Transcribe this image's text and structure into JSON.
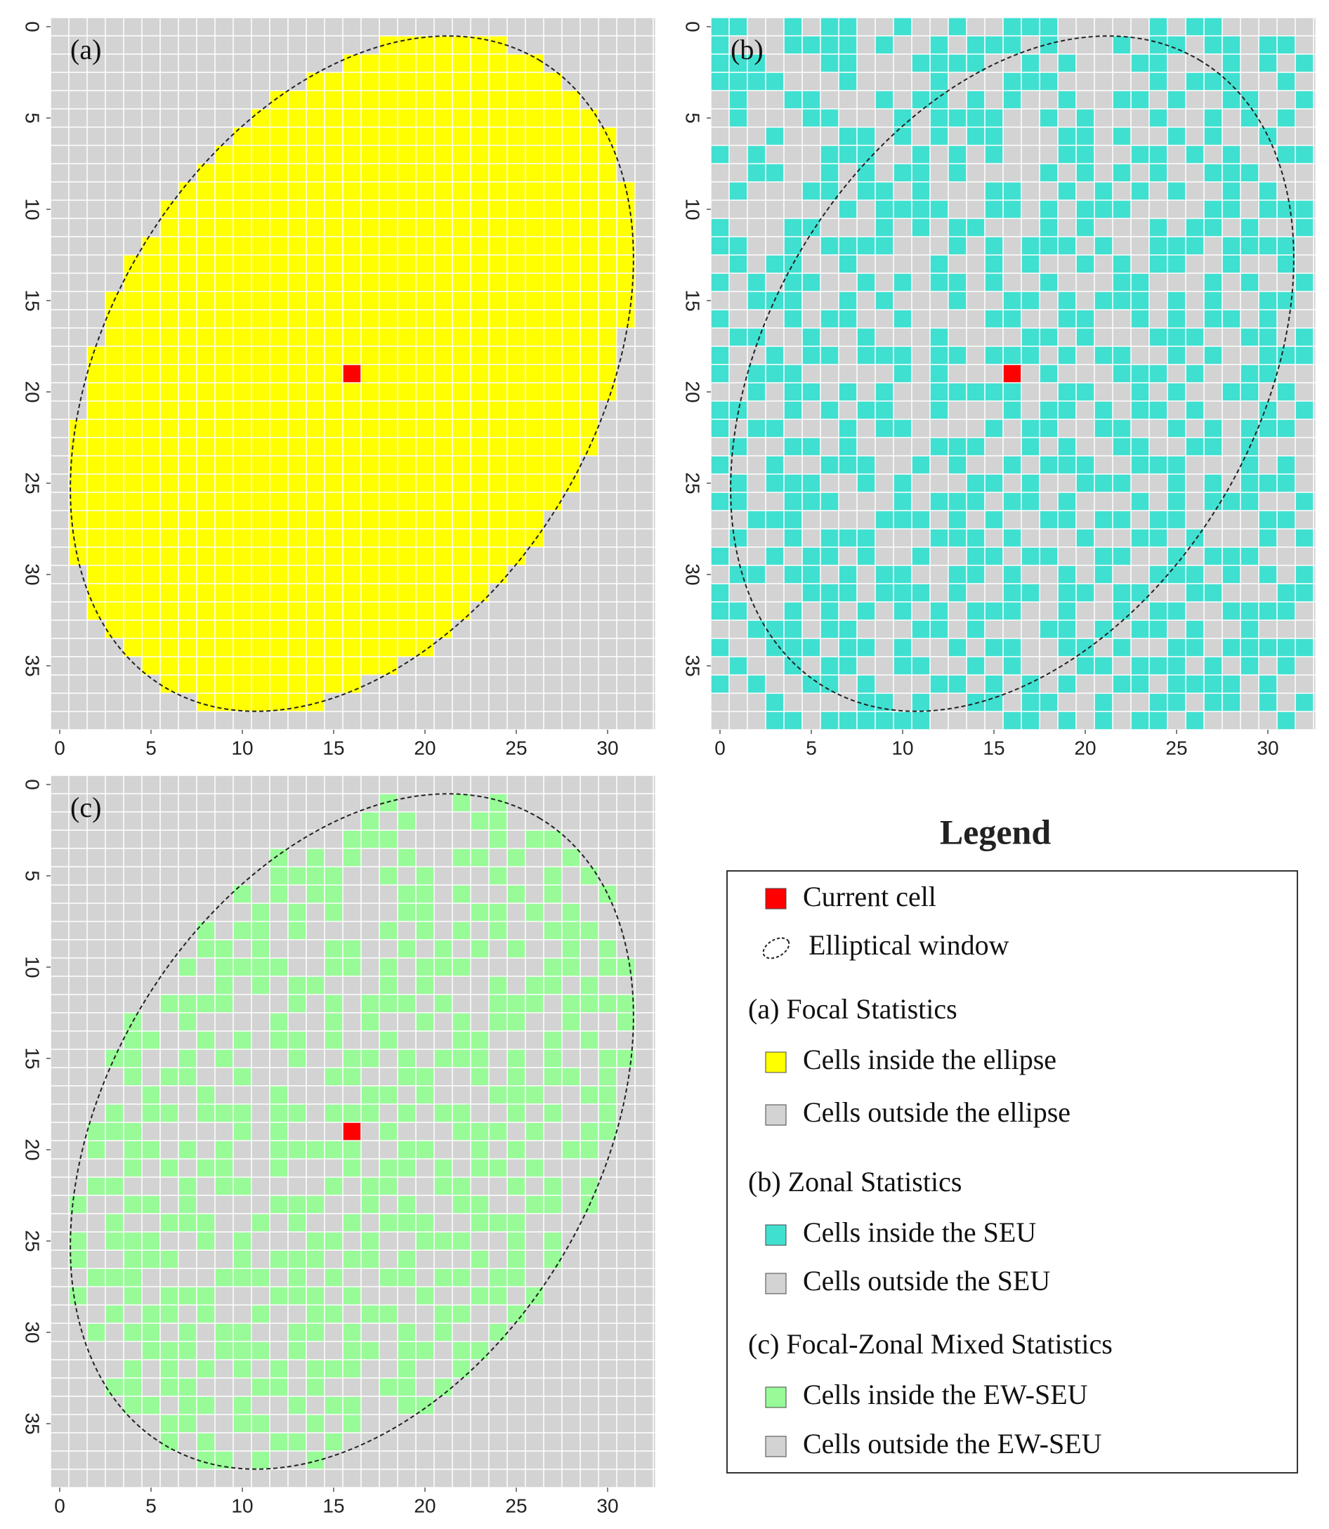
{
  "chart_data": [
    {
      "type": "raster",
      "label": "(a)",
      "xlim": [
        -0.5,
        32.6
      ],
      "ylim": [
        -0.5,
        38.5
      ],
      "xticks": [
        0,
        5,
        10,
        15,
        20,
        25,
        30
      ],
      "yticks": [
        0,
        5,
        10,
        15,
        20,
        25,
        30,
        35
      ],
      "background": "#d3d3d3",
      "fill": "#ffff00",
      "clip": true,
      "ellipse": {
        "center": [
          16,
          19
        ],
        "radii": [
          20,
          13.4
        ],
        "angle": -59.1
      },
      "current": [
        16,
        19
      ],
      "current_color": "#ff0000"
    },
    {
      "type": "raster",
      "label": "(b)",
      "xlim": [
        -0.5,
        32.6
      ],
      "ylim": [
        -0.5,
        38.5
      ],
      "xticks": [
        0,
        5,
        10,
        15,
        20,
        25,
        30
      ],
      "yticks": [
        0,
        5,
        10,
        15,
        20,
        25,
        30,
        35
      ],
      "background": "#d3d3d3",
      "fill": "#40e0d0",
      "clip": false,
      "ellipse": {
        "center": [
          16,
          19
        ],
        "radii": [
          20,
          13.4
        ],
        "angle": -59.1
      },
      "current": [
        16,
        19
      ],
      "current_color": "#ff0000",
      "rows": [
        "110010110010010011100000101100000",
        "100011110100101110100010110110110",
        "111000110001111001010001100010101",
        "111100010000100011100000101110010",
        "010011000101101010010011010011001",
        "010001100010111100101000100101010",
        "000100011010101100011010010100100",
        "101000111001010100011001101010011",
        "001100101011010000101010100111000",
        "010001101101000110010101010010100",
        "000000010111100110101110000110111",
        "100011000101011000101000101101001",
        "110010111100010101110100111011110",
        "010110010000100101001010110010010",
        "101011001010110100100011000101001",
        "001110010100010011010111010100110",
        "100010110010000110011001010110100",
        "011001001000100001101000111001101",
        "100101101110110111010110010100111",
        "101110000010100010100011101001100",
        "001011010100111110011001010011010",
        "110010101100100010110101101000101",
        "101100010110000101100110010101110",
        "010011010000111001010011001101000",
        "100100111001010010111001110001010",
        "010111001010001101001110010101110",
        "110011100010111011010001010111001",
        "001110000111010100110110110000110",
        "010010111000111010001001101000101",
        "100101101001001101100110010111000",
        "011011010110011010010100111010101",
        "100001110111010011011011001100011",
        "110010101010101110010010110011110",
        "001110110001101000110101101001000",
        "100111011010010110011010011011111",
        "010010110011001010001101110101010",
        "101001101000110101010011011110100",
        "000100001101001101100100110110101",
        "000110111111000011010101101000010"
      ],
      "rows_note": null
    },
    {
      "type": "raster",
      "label": "(c)",
      "xlim": [
        -0.5,
        32.6
      ],
      "ylim": [
        -0.5,
        38.5
      ],
      "xticks": [
        0,
        5,
        10,
        15,
        20,
        25,
        30
      ],
      "yticks": [
        0,
        5,
        10,
        15,
        20,
        25,
        30,
        35
      ],
      "background": "#d3d3d3",
      "fill": "#98fb98",
      "clip": true,
      "ellipse": {
        "center": [
          16,
          19
        ],
        "radii": [
          20,
          13.4
        ],
        "angle": -59.1
      },
      "current": [
        16,
        19
      ],
      "current_color": "#ff0000",
      "rows": [
        "110010110010010011100000101100000",
        "100011110100101110100010110110110",
        "111000110001111001010001100010101",
        "111100010000100011100000101110010",
        "010011000101101010010011010011001",
        "010001100010111100101000100101010",
        "000100011010101100011010010100100",
        "101000111001010100011001101010011",
        "001100101011010000101010100111000",
        "010001101101000110010101010010100",
        "000000010111100110101110000110111",
        "100011000101011000101000101101001",
        "110010111100010101110100111011110",
        "010110010000100101001010110010010",
        "101011001010110100100011000101001",
        "001110010100010011010111010100110",
        "100010110010000110011001010110100",
        "011001001000100001101000111001101",
        "100101101110110111010110010100111",
        "101110000010100010100011101001100",
        "001011010100111110011001010011010",
        "110010101100100010110101101000101",
        "101100010110000101100110010101110",
        "010011010000111001010011001101000",
        "100100111001010010111001110001010",
        "010111001010001101001110010101110",
        "110011100010111011010001010111001",
        "001110000111010100110110110000110",
        "010010111000111010001001101000101",
        "100101101001001101100110010111000",
        "011011010110011010010100111010101",
        "100001110111010011011011001100011",
        "110010101010101110010010110011110",
        "001110110001101000110101101001000",
        "100111011010010110011010011011111",
        "010010110011001010001101110101010",
        "101001101000110101010011011110100",
        "000100001101001101100100110110101",
        "000110111111000011010101101000010"
      ]
    }
  ],
  "legend": {
    "title": "Legend",
    "current": {
      "label": "Current cell",
      "color": "#ff0000"
    },
    "window": {
      "label": "Elliptical window"
    },
    "groups": [
      {
        "heading": "(a) Focal Statistics",
        "inside": {
          "label": "Cells inside the ellipse",
          "color": "#ffff00"
        },
        "outside": {
          "label": "Cells outside the ellipse",
          "color": "#d3d3d3"
        }
      },
      {
        "heading": "(b) Zonal Statistics",
        "inside": {
          "label": "Cells inside the SEU",
          "color": "#40e0d0"
        },
        "outside": {
          "label": "Cells outside the SEU",
          "color": "#d3d3d3"
        }
      },
      {
        "heading": "(c) Focal-Zonal Mixed  Statistics",
        "inside": {
          "label": "Cells inside the EW-SEU",
          "color": "#98fb98"
        },
        "outside": {
          "label": "Cells outside the EW-SEU",
          "color": "#d3d3d3"
        }
      }
    ]
  }
}
